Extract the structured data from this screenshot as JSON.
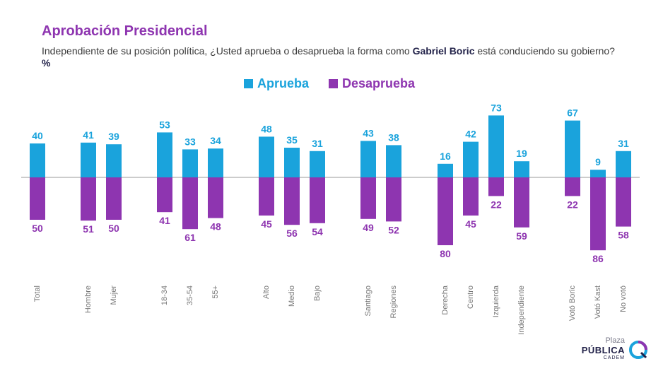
{
  "header": {
    "title": "Aprobación Presidencial",
    "subtitle_pre": "Independiente de su posición política, ¿Usted aprueba o desaprueba la forma como ",
    "subtitle_bold": "Gabriel Boric",
    "subtitle_post": " está conduciendo su gobierno? ",
    "subtitle_unit": "%"
  },
  "logo": {
    "top": "Plaza",
    "main": "PÚBLICA",
    "sub": "CADEM"
  },
  "colors": {
    "aprueba": "#1aa3dc",
    "desaprueba": "#8e35b0",
    "title": "#8e35b0"
  },
  "chart_data": {
    "type": "bar",
    "categories": [
      "Total",
      "Hombre",
      "Mujer",
      "18-34",
      "35-54",
      "55+",
      "Alto",
      "Medio",
      "Bajo",
      "Santiago",
      "Regiones",
      "Derecha",
      "Centro",
      "Izquierda",
      "Independiente",
      "Votó Boric",
      "Votó Kast",
      "No votó"
    ],
    "series": [
      {
        "name": "Aprueba",
        "values": [
          40,
          41,
          39,
          53,
          33,
          34,
          48,
          35,
          31,
          43,
          38,
          16,
          42,
          73,
          19,
          67,
          9,
          31
        ]
      },
      {
        "name": "Desaprueba",
        "values": [
          50,
          51,
          50,
          41,
          61,
          48,
          45,
          56,
          54,
          49,
          52,
          80,
          45,
          22,
          59,
          22,
          86,
          58
        ]
      }
    ],
    "groups": [
      [
        0
      ],
      [
        1,
        2
      ],
      [
        3,
        4,
        5
      ],
      [
        6,
        7,
        8
      ],
      [
        9,
        10
      ],
      [
        11,
        12,
        13,
        14
      ],
      [
        15,
        16,
        17
      ]
    ],
    "legend": "top-center",
    "grid": false
  }
}
